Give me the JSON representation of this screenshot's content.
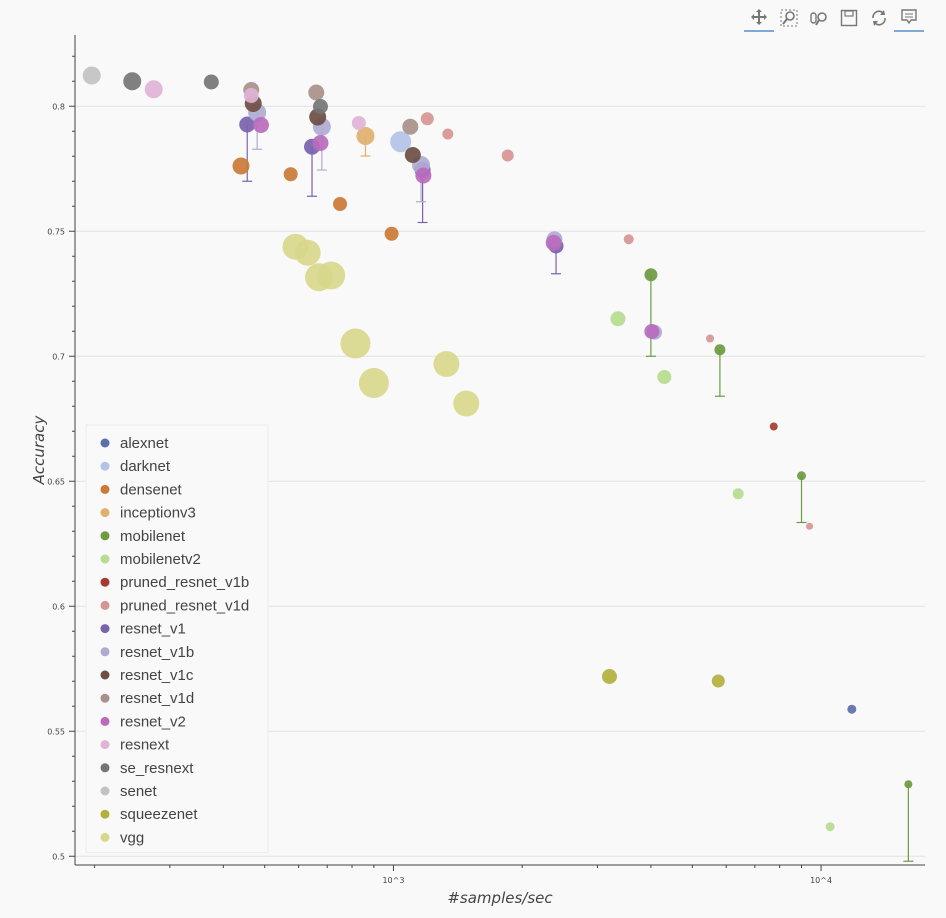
{
  "toolbar": {
    "tools": [
      {
        "name": "pan-tool",
        "icon": "move-arrows-icon",
        "active": true
      },
      {
        "name": "box-zoom-tool",
        "icon": "box-zoom-icon",
        "active": false
      },
      {
        "name": "wheel-zoom-tool",
        "icon": "wheel-zoom-icon",
        "active": false
      },
      {
        "name": "save-tool",
        "icon": "save-icon",
        "active": false
      },
      {
        "name": "reset-tool",
        "icon": "reset-icon",
        "active": false
      },
      {
        "name": "hover-tool",
        "icon": "hover-tooltip-icon",
        "active": true
      }
    ]
  },
  "chart_data": {
    "type": "scatter",
    "title": "",
    "xlabel": "#samples/sec",
    "ylabel": "Accuracy",
    "xscale": "log",
    "xlim": [
      180,
      17500
    ],
    "ylim": [
      0.4965,
      0.8285
    ],
    "x_ticks": [
      {
        "value": 1000,
        "label": "10^3"
      },
      {
        "value": 10000,
        "label": "10^4"
      }
    ],
    "y_ticks": [
      0.5,
      0.55,
      0.6,
      0.65,
      0.7,
      0.75,
      0.8
    ],
    "grid": "horizontal",
    "legend": "bottom-left",
    "colors": {
      "alexnet": "#5b6fa8",
      "darknet": "#b3c3e6",
      "densenet": "#c97a34",
      "inceptionv3": "#e0b06e",
      "mobilenet": "#6e9a40",
      "mobilenetv2": "#b6dc8f",
      "pruned_resnet_v1b": "#a33b33",
      "pruned_resnet_v1d": "#d69592",
      "resnet_v1": "#7a62ac",
      "resnet_v1b": "#b0aad3",
      "resnet_v1c": "#6c4e43",
      "resnet_v1d": "#a8918a",
      "resnet_v2": "#b96bbc",
      "resnext": "#e1b3d6",
      "se_resnext": "#757575",
      "senet": "#c2c2c2",
      "squeezenet": "#b3b03c",
      "vgg": "#d8d88c"
    },
    "series": [
      {
        "name": "alexnet",
        "points": [
          {
            "x": 11800,
            "y": 0.5588,
            "size": 9
          }
        ]
      },
      {
        "name": "darknet",
        "points": [
          {
            "x": 1040,
            "y": 0.7858,
            "size": 21
          }
        ]
      },
      {
        "name": "densenet",
        "points": [
          {
            "x": 440,
            "y": 0.7761,
            "size": 17
          },
          {
            "x": 575,
            "y": 0.7728,
            "size": 14
          },
          {
            "x": 750,
            "y": 0.7609,
            "size": 14
          },
          {
            "x": 990,
            "y": 0.749,
            "size": 14
          }
        ]
      },
      {
        "name": "inceptionv3",
        "points": [
          {
            "x": 860,
            "y": 0.7881,
            "size": 18,
            "err_low": 0.7801
          }
        ]
      },
      {
        "name": "mobilenet",
        "points": [
          {
            "x": 4000,
            "y": 0.7326,
            "size": 13,
            "err_low": 0.7
          },
          {
            "x": 5800,
            "y": 0.7026,
            "size": 11,
            "err_low": 0.684
          },
          {
            "x": 9000,
            "y": 0.6522,
            "size": 9,
            "err_low": 0.6335
          },
          {
            "x": 16000,
            "y": 0.5288,
            "size": 8,
            "err_low": 0.498
          }
        ]
      },
      {
        "name": "mobilenetv2",
        "points": [
          {
            "x": 3350,
            "y": 0.715,
            "size": 15
          },
          {
            "x": 4300,
            "y": 0.6917,
            "size": 14
          },
          {
            "x": 6400,
            "y": 0.645,
            "size": 11
          },
          {
            "x": 10500,
            "y": 0.5118,
            "size": 9
          }
        ]
      },
      {
        "name": "pruned_resnet_v1b",
        "points": [
          {
            "x": 7750,
            "y": 0.6719,
            "size": 8
          }
        ]
      },
      {
        "name": "pruned_resnet_v1d",
        "points": [
          {
            "x": 1200,
            "y": 0.795,
            "size": 13
          },
          {
            "x": 1340,
            "y": 0.7889,
            "size": 11
          },
          {
            "x": 1850,
            "y": 0.7803,
            "size": 12
          },
          {
            "x": 3550,
            "y": 0.7468,
            "size": 10
          },
          {
            "x": 5500,
            "y": 0.7071,
            "size": 8
          },
          {
            "x": 9400,
            "y": 0.632,
            "size": 7
          }
        ]
      },
      {
        "name": "resnet_v1",
        "points": [
          {
            "x": 455,
            "y": 0.7927,
            "size": 16,
            "err_low": 0.77
          },
          {
            "x": 645,
            "y": 0.7838,
            "size": 16,
            "err_low": 0.764
          },
          {
            "x": 1170,
            "y": 0.7745,
            "size": 16,
            "err_low": 0.7535
          },
          {
            "x": 2400,
            "y": 0.7441,
            "size": 15,
            "err_low": 0.733
          }
        ]
      },
      {
        "name": "resnet_v1b",
        "points": [
          {
            "x": 480,
            "y": 0.7975,
            "size": 18,
            "err_low": 0.7828
          },
          {
            "x": 680,
            "y": 0.7918,
            "size": 18,
            "err_low": 0.7745
          },
          {
            "x": 1160,
            "y": 0.7765,
            "size": 18,
            "err_low": 0.7618
          },
          {
            "x": 2380,
            "y": 0.7468,
            "size": 16
          },
          {
            "x": 4080,
            "y": 0.7096,
            "size": 15
          }
        ]
      },
      {
        "name": "resnet_v1c",
        "points": [
          {
            "x": 470,
            "y": 0.8011,
            "size": 17
          },
          {
            "x": 665,
            "y": 0.7957,
            "size": 17
          },
          {
            "x": 1110,
            "y": 0.7805,
            "size": 16
          }
        ]
      },
      {
        "name": "resnet_v1d",
        "points": [
          {
            "x": 465,
            "y": 0.8065,
            "size": 16
          },
          {
            "x": 660,
            "y": 0.8055,
            "size": 16
          },
          {
            "x": 1095,
            "y": 0.7918,
            "size": 16
          }
        ]
      },
      {
        "name": "resnet_v2",
        "points": [
          {
            "x": 490,
            "y": 0.7925,
            "size": 16
          },
          {
            "x": 675,
            "y": 0.7853,
            "size": 16
          },
          {
            "x": 1175,
            "y": 0.7723,
            "size": 16
          },
          {
            "x": 2370,
            "y": 0.7454,
            "size": 16
          },
          {
            "x": 4020,
            "y": 0.7099,
            "size": 15
          }
        ]
      },
      {
        "name": "resnext",
        "points": [
          {
            "x": 275,
            "y": 0.8068,
            "size": 18
          },
          {
            "x": 465,
            "y": 0.8043,
            "size": 15
          },
          {
            "x": 830,
            "y": 0.7933,
            "size": 14
          }
        ]
      },
      {
        "name": "se_resnext",
        "points": [
          {
            "x": 245,
            "y": 0.81,
            "size": 18
          },
          {
            "x": 375,
            "y": 0.8097,
            "size": 15
          },
          {
            "x": 675,
            "y": 0.7999,
            "size": 15
          }
        ]
      },
      {
        "name": "senet",
        "points": [
          {
            "x": 197,
            "y": 0.8123,
            "size": 18
          }
        ]
      },
      {
        "name": "squeezenet",
        "points": [
          {
            "x": 3200,
            "y": 0.5719,
            "size": 15
          },
          {
            "x": 5750,
            "y": 0.5701,
            "size": 13
          }
        ]
      },
      {
        "name": "vgg",
        "points": [
          {
            "x": 590,
            "y": 0.7438,
            "size": 26
          },
          {
            "x": 630,
            "y": 0.7414,
            "size": 26
          },
          {
            "x": 670,
            "y": 0.7316,
            "size": 28
          },
          {
            "x": 715,
            "y": 0.7323,
            "size": 28
          },
          {
            "x": 815,
            "y": 0.7051,
            "size": 30
          },
          {
            "x": 900,
            "y": 0.6893,
            "size": 30
          },
          {
            "x": 1330,
            "y": 0.6969,
            "size": 26
          },
          {
            "x": 1480,
            "y": 0.6811,
            "size": 26
          }
        ]
      }
    ]
  }
}
